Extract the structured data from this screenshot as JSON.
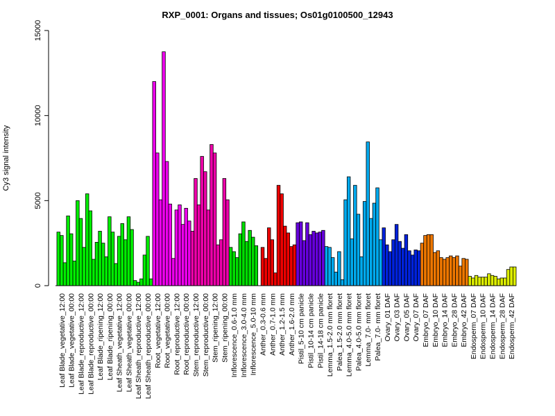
{
  "chart_data": {
    "type": "bar",
    "title": "RXP_0001: Organs and tissues; Os01g0100500_12943",
    "xlabel": "",
    "ylabel": "Cy3 signal intensity",
    "ylim": [
      0,
      15000
    ],
    "yticks": [
      0,
      5000,
      10000,
      15000
    ],
    "grid": false,
    "categories": [
      "Leaf Blade_vegetative_12:00",
      "Leaf Blade_vegetative_00:00",
      "Leaf Blade_reproductive_12:00",
      "Leaf Blade_reproductive_00:00",
      "Leaf Blade_ripening_12:00",
      "Leaf Blade_ripening_00:00",
      "Leaf Sheath_vegetative_12:00",
      "Leaf Sheath_vegetative_00:00",
      "Leaf Sheath_reproductive_12:00",
      "Leaf Sheath_reproductive_00:00",
      "Root_vegetative_12:00",
      "Root_vegetative_00:00",
      "Root_reproductive_12:00",
      "Root_reproductive_00:00",
      "Stem_reproductive_12:00",
      "Stem_reproductive_00:00",
      "Stem_ripening_12:00",
      "Stem_ripening_00:00",
      "Inflorescence_0.6-1.0 mm",
      "Inflorescence_3.0-4.0 mm",
      "Inflorescence_5.0-10 mm",
      "Anther_0.3-0.6 mm",
      "Anther_0.7-1.0 mm",
      "Anther_1.2-1.5 mm",
      "Anther_1.6-2.0 mm",
      "Pistil_5-10 cm panicle",
      "Pistil_10-14 cm panicle",
      "Pistil_14-18 cm panicle",
      "Lemma_1.5-2.0 mm floret",
      "Palea_1.5-2.0 mm floret",
      "Lemma_4.0-5.0 mm floret",
      "Palea_4.0-5.0 mm floret",
      "Lemma_7.0- mm floret",
      "Palea_7.0- mm floret",
      "Ovary_01 DAF",
      "Ovary_03 DAF",
      "Ovary_05 DAF",
      "Ovary_07 DAF",
      "Embryo_07 DAF",
      "Embryo_10 DAF",
      "Embryo_14 DAF",
      "Embryo_28 DAF",
      "Embryo_42 DAF",
      "Endosperm_07 DAF",
      "Endosperm_10 DAF",
      "Endosperm_14 DAF",
      "Endosperm_28 DAF",
      "Endosperm_42 DAF"
    ],
    "group_colors": [
      "#00ee00",
      "#00ee00",
      "#00ee00",
      "#00ee00",
      "#00ee00",
      "#00ee00",
      "#00ee00",
      "#00ee00",
      "#00ee00",
      "#00ee00",
      "#ee00ee",
      "#ee00ee",
      "#ee00ee",
      "#ee00ee",
      "#ee00aa",
      "#ee00aa",
      "#ee00aa",
      "#ee00aa",
      "#00dd00",
      "#00dd00",
      "#00dd00",
      "#ee0000",
      "#ee0000",
      "#ee0000",
      "#ee0000",
      "#6600dd",
      "#6600dd",
      "#6600dd",
      "#00aaee",
      "#00aaee",
      "#00aaee",
      "#00aaee",
      "#00aaee",
      "#00aaee",
      "#0022dd",
      "#0022dd",
      "#0022dd",
      "#0022dd",
      "#ee7700",
      "#ee7700",
      "#ee7700",
      "#ee7700",
      "#ee7700",
      "#ddee00",
      "#ddee00",
      "#ddee00",
      "#ddee00",
      "#ddee00"
    ],
    "values": [
      [
        3150,
        2950,
        1350
      ],
      [
        4100,
        3050,
        1450
      ],
      [
        5000,
        3950,
        2250
      ],
      [
        5400,
        4400,
        1550
      ],
      [
        2550,
        3200,
        2500
      ],
      [
        1700,
        4050,
        3150
      ],
      [
        1300,
        2900,
        3650
      ],
      [
        2700,
        4050,
        3300
      ],
      [
        300,
        200,
        400
      ],
      [
        1800,
        2900,
        400
      ],
      [
        12000,
        7800,
        5050
      ],
      [
        13750,
        7300,
        4800
      ],
      [
        1600,
        4450,
        4750
      ],
      [
        3600,
        4550,
        3800
      ],
      [
        3200,
        6300,
        4750
      ],
      [
        7600,
        6700,
        4450
      ],
      [
        8300,
        7800,
        2400
      ],
      [
        2700,
        6300,
        5050
      ],
      [
        2250,
        2000,
        1650
      ],
      [
        3050,
        3750,
        2600
      ],
      [
        3250,
        2850,
        2350
      ],
      [
        0,
        2250,
        1600
      ],
      [
        3400,
        2700,
        750
      ],
      [
        5900,
        5400,
        3500
      ],
      [
        3100,
        2300,
        2400
      ],
      [
        3700,
        3750,
        2650
      ],
      [
        3700,
        3000,
        3200
      ],
      [
        3100,
        3150,
        3250
      ],
      [
        2300,
        2250,
        1650
      ],
      [
        800,
        2000,
        350
      ],
      [
        5050,
        6400,
        2750
      ],
      [
        5900,
        4200,
        1700
      ],
      [
        4950,
        8450,
        3950
      ],
      [
        4850,
        5750,
        2700
      ],
      [
        3400,
        2400,
        2000
      ],
      [
        2700,
        3600,
        2600
      ],
      [
        2200,
        3000,
        2050
      ],
      [
        1800,
        2100,
        2050
      ],
      [
        2500,
        2950,
        3000
      ],
      [
        3000,
        1950,
        2050
      ],
      [
        1650,
        1550,
        1650
      ],
      [
        1750,
        1650,
        1750
      ],
      [
        1150,
        1600,
        1550
      ],
      [
        550,
        450,
        600
      ],
      [
        500,
        500,
        500
      ],
      [
        700,
        600,
        550
      ],
      [
        400,
        450,
        450
      ],
      [
        950,
        1100,
        1100
      ]
    ]
  }
}
